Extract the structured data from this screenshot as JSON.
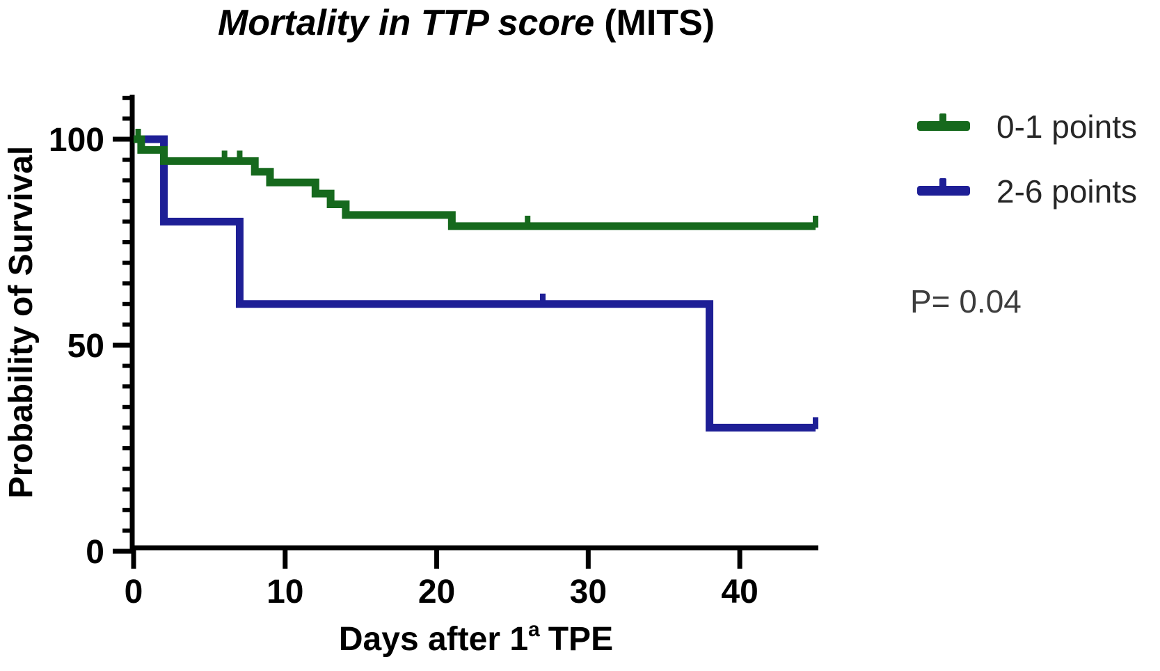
{
  "chart_data": {
    "type": "line",
    "subtype": "kaplan-meier-step-survival",
    "title": "Mortality in TTP score (MITS)",
    "title_italic": "Mortality in TTP score",
    "title_regular": "(MITS)",
    "xlabel": "Days after 1ª TPE",
    "xlabel_prefix": "Days after 1",
    "xlabel_sup": "a",
    "xlabel_suffix": "TPE",
    "ylabel": "Probability of Survival",
    "xlim": [
      0,
      45
    ],
    "ylim": [
      0,
      110
    ],
    "x_ticks": [
      0,
      10,
      20,
      30,
      40
    ],
    "y_ticks": [
      0,
      50,
      100
    ],
    "y_minor_tick_step": 5,
    "grid": false,
    "legend_position": "top-right",
    "annotation": "P= 0.04",
    "series": [
      {
        "name": "0-1 points",
        "color": "#16691d",
        "steps": [
          [
            0,
            100
          ],
          [
            0.5,
            97.4
          ],
          [
            2,
            94.7
          ],
          [
            8,
            92.1
          ],
          [
            9,
            89.5
          ],
          [
            12,
            86.8
          ],
          [
            13,
            84.2
          ],
          [
            14,
            81.6
          ],
          [
            21,
            78.9
          ]
        ],
        "end_x": 45,
        "censor_marks": [
          [
            0.3,
            100
          ],
          [
            6,
            94.7
          ],
          [
            7,
            94.7
          ],
          [
            26,
            78.9
          ],
          [
            45,
            78.9
          ]
        ]
      },
      {
        "name": "2-6 points",
        "color": "#1e1f96",
        "steps": [
          [
            0,
            100
          ],
          [
            2,
            80
          ],
          [
            7,
            60
          ],
          [
            38,
            30
          ]
        ],
        "end_x": 45,
        "censor_marks": [
          [
            27,
            60
          ],
          [
            45,
            30
          ]
        ]
      }
    ]
  }
}
